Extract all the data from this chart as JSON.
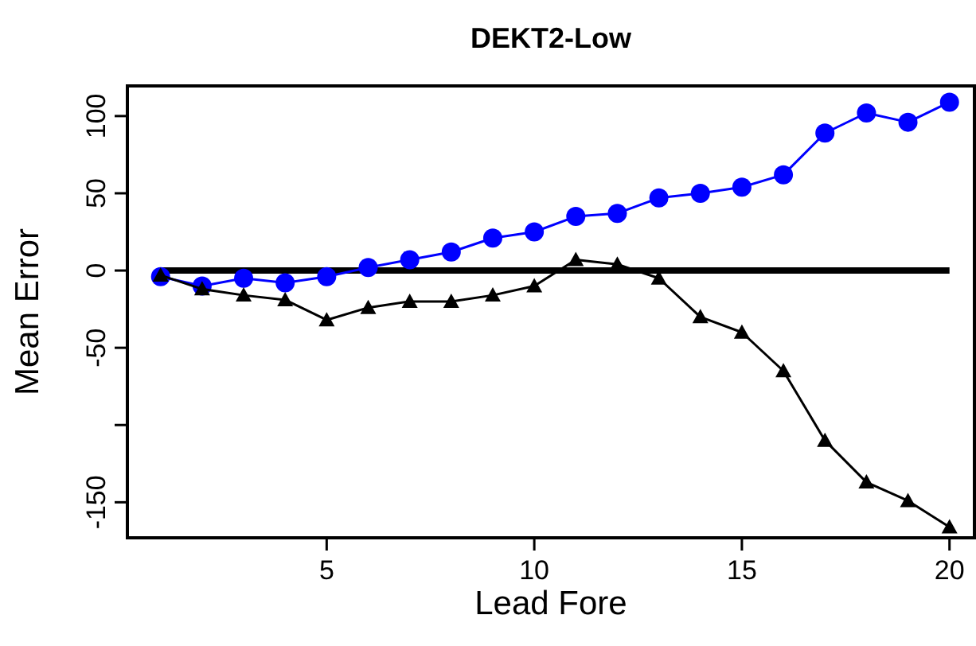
{
  "chart_data": {
    "type": "line",
    "title": "DEKT2-Low",
    "xlabel": "Lead Fore",
    "ylabel": "Mean Error",
    "x": [
      1,
      2,
      3,
      4,
      5,
      6,
      7,
      8,
      9,
      10,
      11,
      12,
      13,
      14,
      15,
      16,
      17,
      18,
      19,
      20
    ],
    "series": [
      {
        "color": "#0000ff",
        "marker": "circle",
        "values": [
          -4,
          -10,
          -5,
          -8,
          -4,
          2,
          7,
          12,
          21,
          25,
          35,
          37,
          47,
          50,
          54,
          62,
          89,
          102,
          96,
          109
        ]
      },
      {
        "color": "#000000",
        "marker": "triangle",
        "values": [
          -3,
          -12,
          -16,
          -19,
          -32,
          -24,
          -20,
          -20,
          -16,
          -10,
          7,
          4,
          -5,
          -30,
          -40,
          -65,
          -110,
          -137,
          -149,
          -166
        ]
      }
    ],
    "xlim": [
      0.2,
      20.6
    ],
    "ylim": [
      -173,
      119.5
    ],
    "xticks": [
      5,
      10,
      15,
      20
    ],
    "yticks": [
      -150,
      {
        "value": -100,
        "label": null
      },
      -50,
      0,
      50,
      100
    ],
    "ref_lines": [
      {
        "axis": "y",
        "value": 0,
        "color": "#000000"
      }
    ],
    "grid": false
  }
}
